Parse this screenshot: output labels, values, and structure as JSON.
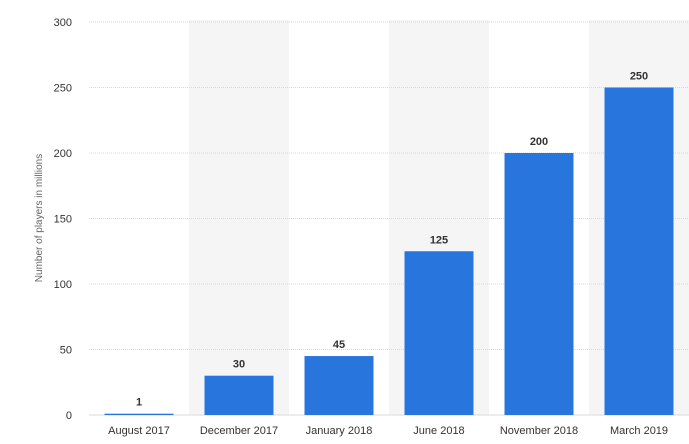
{
  "chart_data": {
    "type": "bar",
    "categories": [
      "August 2017",
      "December 2017",
      "January 2018",
      "June 2018",
      "November 2018",
      "March 2019"
    ],
    "values": [
      1,
      30,
      45,
      125,
      200,
      250
    ],
    "data_labels": [
      "1",
      "30",
      "45",
      "125",
      "200",
      "250"
    ],
    "title": "",
    "xlabel": "",
    "ylabel": "Number of players in millions",
    "ylim": [
      0,
      300
    ],
    "yticks": [
      0,
      50,
      100,
      150,
      200,
      250,
      300
    ],
    "ytick_labels": [
      "0",
      "50",
      "100",
      "150",
      "200",
      "250",
      "300"
    ],
    "grid": true,
    "legend": "none",
    "colors": {
      "bar": "#2876dd",
      "band": "#f5f5f5",
      "grid": "#d9d9d9"
    }
  }
}
